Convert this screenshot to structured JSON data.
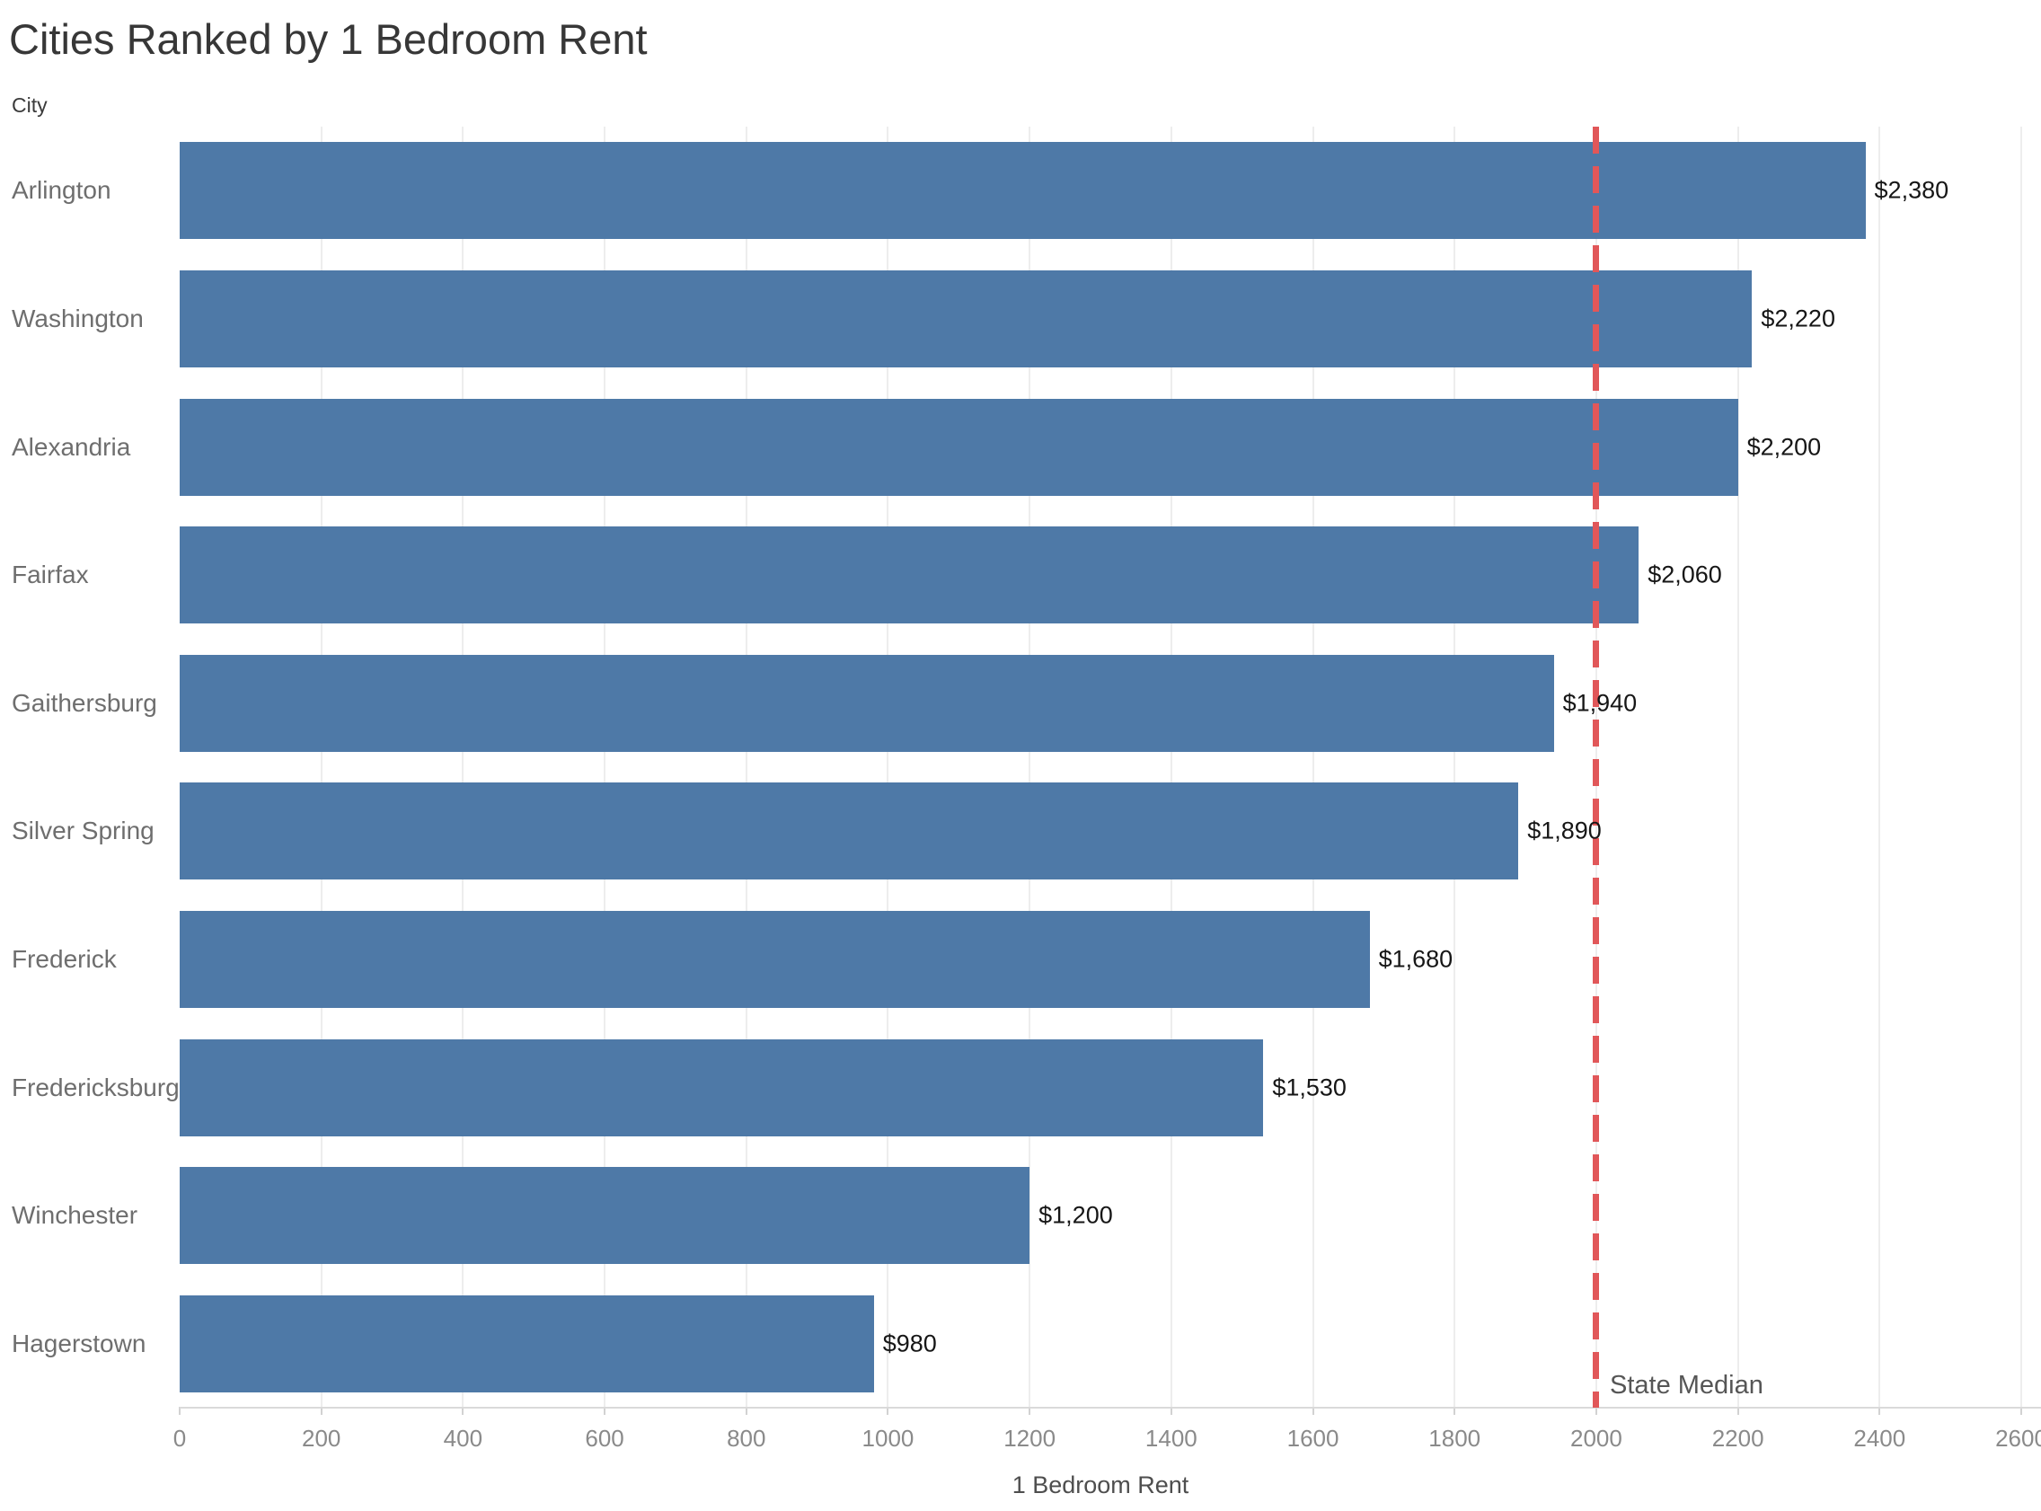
{
  "title": "Cities Ranked by 1 Bedroom Rent",
  "row_axis_header": "City",
  "chart_data": {
    "type": "bar",
    "orientation": "horizontal",
    "title": "Cities Ranked by 1 Bedroom Rent",
    "categories": [
      "Arlington",
      "Washington",
      "Alexandria",
      "Fairfax",
      "Gaithersburg",
      "Silver Spring",
      "Frederick",
      "Fredericksburg",
      "Winchester",
      "Hagerstown"
    ],
    "values": [
      2380,
      2220,
      2200,
      2060,
      1940,
      1890,
      1680,
      1530,
      1200,
      980
    ],
    "value_labels": [
      "$2,380",
      "$2,220",
      "$2,200",
      "$2,060",
      "$1,940",
      "$1,890",
      "$1,680",
      "$1,530",
      "$1,200",
      "$980"
    ],
    "category_axis_label": "City",
    "xlabel": "1 Bedroom Rent",
    "xlim": [
      0,
      2600
    ],
    "xticks": [
      0,
      200,
      400,
      600,
      800,
      1000,
      1200,
      1400,
      1600,
      1800,
      2000,
      2200,
      2400,
      2600
    ],
    "grid": true,
    "legend": false,
    "bar_color": "#4e79a7",
    "reference_line": {
      "label": "State Median",
      "value": 2000,
      "color": "#e15759",
      "style": "dashed"
    }
  }
}
